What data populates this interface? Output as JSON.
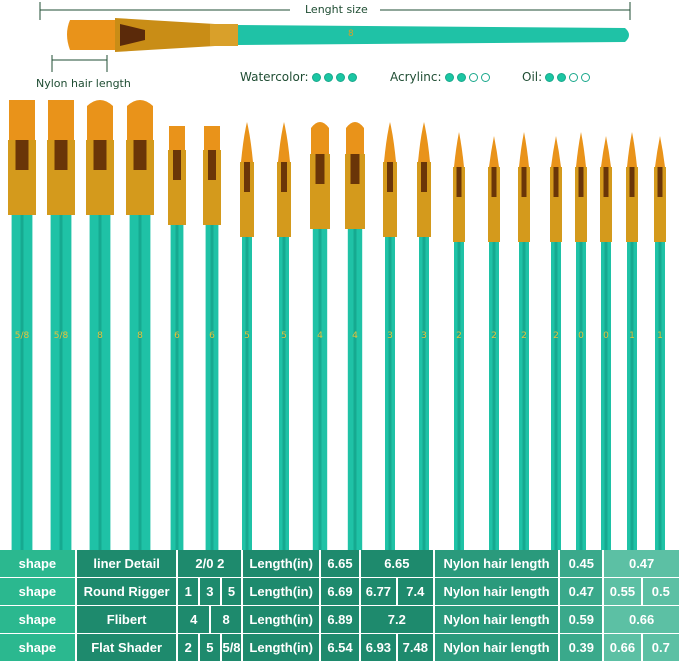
{
  "header": {
    "length_label": "Lenght size",
    "hair_label": "Nylon hair length",
    "sample_brush_size": "8",
    "uses": [
      {
        "label": "Watercolor:",
        "rating": 4,
        "max": 4
      },
      {
        "label": "Acrylinc:",
        "rating": 2,
        "max": 4
      },
      {
        "label": "Oil:",
        "rating": 2,
        "max": 4
      }
    ]
  },
  "colors": {
    "handle": "#1fc2a6",
    "ferrule": "#d49a1c",
    "bristle": "#e9931a",
    "table": "#1e8a6d"
  },
  "brushes": [
    {
      "size": "5/8",
      "head": "flat"
    },
    {
      "size": "5/8",
      "head": "flat"
    },
    {
      "size": "8",
      "head": "filbert-wide"
    },
    {
      "size": "8",
      "head": "filbert-wide"
    },
    {
      "size": "6",
      "head": "flat-small"
    },
    {
      "size": "6",
      "head": "flat-small"
    },
    {
      "size": "5",
      "head": "round"
    },
    {
      "size": "5",
      "head": "round"
    },
    {
      "size": "4",
      "head": "filbert"
    },
    {
      "size": "4",
      "head": "filbert"
    },
    {
      "size": "3",
      "head": "round"
    },
    {
      "size": "3",
      "head": "round"
    },
    {
      "size": "2",
      "head": "liner"
    },
    {
      "size": "2",
      "head": "liner"
    },
    {
      "size": "2",
      "head": "liner"
    },
    {
      "size": "2",
      "head": "liner"
    },
    {
      "size": "0",
      "head": "liner"
    },
    {
      "size": "0",
      "head": "liner"
    },
    {
      "size": "1",
      "head": "liner"
    },
    {
      "size": "1",
      "head": "liner"
    }
  ],
  "table": {
    "rows": [
      {
        "shape": "shape",
        "name": "liner Detail",
        "sizes": [
          "2/0 2"
        ],
        "length_label": "Length(in)",
        "l0": "6.65",
        "lens": [
          "6.65"
        ],
        "hair_label": "Nylon hair length",
        "h0": "0.45",
        "hairs": [
          "0.47"
        ]
      },
      {
        "shape": "shape",
        "name": "Round Rigger",
        "sizes": [
          "1",
          "3",
          "5"
        ],
        "length_label": "Length(in)",
        "l0": "6.69",
        "lens": [
          "6.77",
          "7.4"
        ],
        "hair_label": "Nylon hair length",
        "h0": "0.47",
        "hairs": [
          "0.55",
          "0.5"
        ]
      },
      {
        "shape": "shape",
        "name": "Flibert",
        "sizes": [
          "4",
          "8"
        ],
        "length_label": "Length(in)",
        "l0": "6.89",
        "lens": [
          "7.2"
        ],
        "hair_label": "Nylon hair length",
        "h0": "0.59",
        "hairs": [
          "0.66"
        ]
      },
      {
        "shape": "shape",
        "name": "Flat Shader",
        "sizes": [
          "2",
          "5",
          "5/8"
        ],
        "length_label": "Length(in)",
        "l0": "6.54",
        "lens": [
          "6.93",
          "7.48"
        ],
        "hair_label": "Nylon hair length",
        "h0": "0.39",
        "hairs": [
          "0.66",
          "0.7"
        ]
      }
    ]
  }
}
